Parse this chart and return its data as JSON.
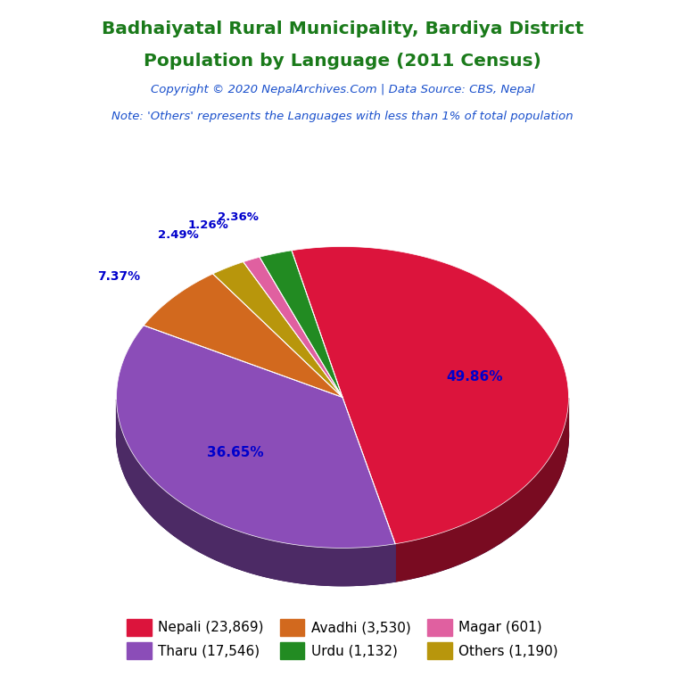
{
  "title_line1": "Badhaiyatal Rural Municipality, Bardiya District",
  "title_line2": "Population by Language (2011 Census)",
  "copyright": "Copyright © 2020 NepalArchives.Com | Data Source: CBS, Nepal",
  "note": "Note: 'Others' represents the Languages with less than 1% of total population",
  "values": [
    23869,
    17546,
    3530,
    1190,
    601,
    1132
  ],
  "percentages": [
    "49.86%",
    "36.65%",
    "7.37%",
    "2.49%",
    "1.26%",
    "2.36%"
  ],
  "colors": [
    "#DC143C",
    "#8B4DB8",
    "#D2691E",
    "#B8960C",
    "#E060A0",
    "#228B22"
  ],
  "shadow_color": "#2D0050",
  "legend_labels": [
    "Nepali (23,869)",
    "Tharu (17,546)",
    "Avadhi (3,530)",
    "Urdu (1,132)",
    "Magar (601)",
    "Others (1,190)"
  ],
  "legend_colors": [
    "#DC143C",
    "#8B4DB8",
    "#D2691E",
    "#228B22",
    "#E060A0",
    "#B8960C"
  ],
  "title_color": "#1A7A1A",
  "copyright_color": "#1A50CC",
  "note_color": "#1A50CC",
  "pct_color": "#0000CC"
}
